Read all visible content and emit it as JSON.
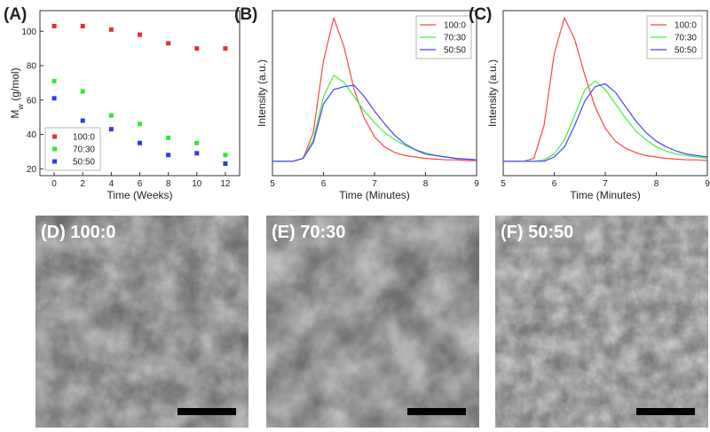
{
  "chart_data": [
    {
      "type": "scatter",
      "panel": "(A)",
      "xlabel": "Time (Weeks)",
      "ylabel": "M",
      "ylabel_subscript": "w",
      "ylabel_suffix": " (g/mol)",
      "x": [
        0,
        2,
        4,
        6,
        8,
        10,
        12
      ],
      "series": [
        {
          "name": "100:0",
          "color": "#e8302f",
          "values": [
            103,
            103,
            101,
            98,
            93,
            90,
            90
          ]
        },
        {
          "name": "70:30",
          "color": "#33e82f",
          "values": [
            71,
            65,
            51,
            46,
            38,
            35,
            28
          ]
        },
        {
          "name": "50:50",
          "color": "#2f3be8",
          "values": [
            61,
            48,
            43,
            35,
            28,
            29,
            23
          ]
        }
      ],
      "xlim": [
        -1,
        13
      ],
      "xticks": [
        0,
        2,
        4,
        6,
        8,
        10,
        12
      ],
      "ylim": [
        16,
        112
      ],
      "yticks": [
        20,
        40,
        60,
        80,
        100
      ],
      "legend": "lower-left"
    },
    {
      "type": "line",
      "panel": "(B)",
      "xlabel": "Time (Minutes)",
      "ylabel": "Intensity (a.u.)",
      "x": [
        5.0,
        5.2,
        5.4,
        5.6,
        5.8,
        6.0,
        6.2,
        6.4,
        6.6,
        6.8,
        7.0,
        7.2,
        7.4,
        7.6,
        7.8,
        8.0,
        8.2,
        8.4,
        8.6,
        8.8,
        9.0
      ],
      "series": [
        {
          "name": "100:0",
          "color": "#ff4444",
          "values": [
            0,
            0,
            0,
            0.02,
            0.2,
            0.7,
            1.0,
            0.8,
            0.5,
            0.3,
            0.17,
            0.1,
            0.06,
            0.04,
            0.03,
            0.02,
            0.015,
            0.01,
            0.01,
            0.005,
            0.005
          ]
        },
        {
          "name": "70:30",
          "color": "#44ee44",
          "values": [
            0,
            0,
            0,
            0.02,
            0.15,
            0.45,
            0.6,
            0.55,
            0.45,
            0.35,
            0.27,
            0.2,
            0.15,
            0.11,
            0.08,
            0.06,
            0.04,
            0.03,
            0.02,
            0.015,
            0.01
          ]
        },
        {
          "name": "50:50",
          "color": "#4444ff",
          "values": [
            0,
            0,
            0,
            0.02,
            0.13,
            0.4,
            0.5,
            0.52,
            0.53,
            0.45,
            0.35,
            0.26,
            0.18,
            0.12,
            0.08,
            0.05,
            0.04,
            0.03,
            0.02,
            0.015,
            0.01
          ]
        }
      ],
      "xlim": [
        5,
        9
      ],
      "xticks": [
        5,
        6,
        7,
        8,
        9
      ],
      "ylim": [
        -0.1,
        1.05
      ],
      "legend": "upper-right"
    },
    {
      "type": "line",
      "panel": "(C)",
      "xlabel": "Time (Minutes)",
      "ylabel": "Intensity (a.u.)",
      "x": [
        5.0,
        5.2,
        5.4,
        5.6,
        5.8,
        6.0,
        6.2,
        6.4,
        6.6,
        6.8,
        7.0,
        7.2,
        7.4,
        7.6,
        7.8,
        8.0,
        8.2,
        8.4,
        8.6,
        8.8,
        9.0
      ],
      "series": [
        {
          "name": "100:0",
          "color": "#ff4444",
          "values": [
            0,
            0,
            0,
            0.02,
            0.25,
            0.75,
            1.0,
            0.85,
            0.6,
            0.38,
            0.23,
            0.14,
            0.09,
            0.06,
            0.04,
            0.03,
            0.02,
            0.015,
            0.01,
            0.01,
            0.005
          ]
        },
        {
          "name": "70:30",
          "color": "#44ee44",
          "values": [
            0,
            0,
            0,
            0,
            0.01,
            0.05,
            0.15,
            0.32,
            0.5,
            0.56,
            0.5,
            0.4,
            0.3,
            0.21,
            0.15,
            0.1,
            0.07,
            0.05,
            0.04,
            0.03,
            0.02
          ]
        },
        {
          "name": "50:50",
          "color": "#4444ff",
          "values": [
            0,
            0,
            0,
            0,
            0,
            0.03,
            0.1,
            0.25,
            0.42,
            0.52,
            0.54,
            0.48,
            0.38,
            0.28,
            0.2,
            0.14,
            0.1,
            0.07,
            0.05,
            0.04,
            0.03
          ]
        }
      ],
      "xlim": [
        5,
        9
      ],
      "xticks": [
        5,
        6,
        7,
        8,
        9
      ],
      "ylim": [
        -0.1,
        1.05
      ],
      "legend": "upper-right"
    }
  ],
  "images": [
    {
      "label": "(D) 100:0"
    },
    {
      "label": "(E) 70:30"
    },
    {
      "label": "(F) 50:50"
    }
  ]
}
